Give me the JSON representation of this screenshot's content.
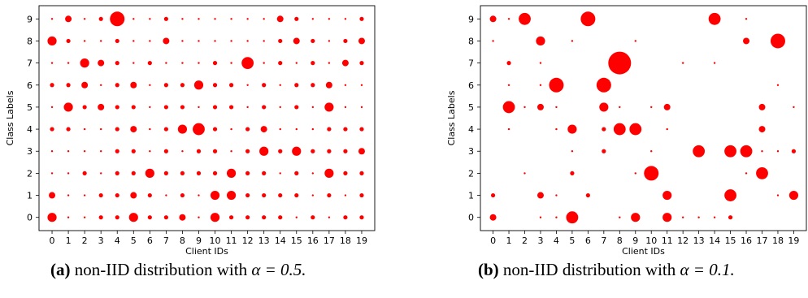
{
  "chart_data": [
    {
      "type": "scatter",
      "panel_tag": "(a)",
      "caption_text": "non-IID distribution with",
      "caption_math": "α = 0.5.",
      "xlabel": "Client IDs",
      "ylabel": "Class Labels",
      "x_ticks": [
        "0",
        "1",
        "2",
        "3",
        "4",
        "5",
        "6",
        "7",
        "8",
        "9",
        "10",
        "11",
        "12",
        "13",
        "14",
        "15",
        "16",
        "17",
        "18",
        "19"
      ],
      "y_ticks": [
        "0",
        "1",
        "2",
        "3",
        "4",
        "5",
        "6",
        "7",
        "8",
        "9"
      ],
      "xlim": [
        -0.8,
        19.8
      ],
      "ylim": [
        -0.6,
        9.6
      ],
      "marker_color": "#ff0000",
      "size_grid": [
        [
          4,
          1,
          1,
          2,
          2,
          4,
          2,
          2,
          3,
          1,
          4,
          2,
          2,
          2,
          2,
          1,
          2,
          1,
          2,
          2
        ],
        [
          3,
          1,
          1,
          2,
          2,
          3,
          2,
          1,
          2,
          1,
          4,
          4,
          2,
          2,
          2,
          2,
          1,
          2,
          1,
          2
        ],
        [
          1,
          1,
          2,
          1,
          2,
          2,
          4,
          2,
          2,
          2,
          2,
          4,
          2,
          2,
          1,
          2,
          1,
          4,
          2,
          2
        ],
        [
          1,
          1,
          1,
          1,
          2,
          2,
          1,
          2,
          1,
          2,
          2,
          1,
          2,
          4,
          2,
          4,
          2,
          2,
          2,
          3
        ],
        [
          2,
          2,
          1,
          1,
          2,
          3,
          1,
          2,
          4,
          5,
          2,
          1,
          2,
          3,
          1,
          1,
          1,
          2,
          2,
          2
        ],
        [
          1,
          4,
          2,
          3,
          2,
          2,
          1,
          2,
          2,
          1,
          2,
          2,
          1,
          2,
          1,
          2,
          1,
          4,
          1,
          1
        ],
        [
          2,
          2,
          3,
          1,
          2,
          3,
          1,
          2,
          2,
          4,
          2,
          2,
          1,
          2,
          1,
          2,
          2,
          3,
          1,
          1
        ],
        [
          1,
          1,
          4,
          3,
          2,
          1,
          2,
          1,
          1,
          1,
          2,
          1,
          5,
          1,
          2,
          1,
          2,
          1,
          3,
          2
        ],
        [
          4,
          2,
          1,
          1,
          2,
          1,
          1,
          3,
          1,
          1,
          1,
          1,
          1,
          1,
          2,
          3,
          2,
          1,
          2,
          3
        ],
        [
          1,
          3,
          1,
          2,
          6,
          1,
          1,
          2,
          1,
          1,
          1,
          1,
          1,
          1,
          3,
          2,
          1,
          1,
          1,
          2
        ]
      ]
    },
    {
      "type": "scatter",
      "panel_tag": "(b)",
      "caption_text": "non-IID distribution with",
      "caption_math": "α = 0.1.",
      "xlabel": "Client IDs",
      "ylabel": "Class Labels",
      "x_ticks": [
        "0",
        "1",
        "2",
        "3",
        "4",
        "5",
        "6",
        "7",
        "8",
        "9",
        "10",
        "11",
        "12",
        "13",
        "14",
        "15",
        "16",
        "17",
        "18",
        "19"
      ],
      "y_ticks": [
        "0",
        "1",
        "2",
        "3",
        "4",
        "5",
        "6",
        "7",
        "8",
        "9"
      ],
      "xlim": [
        -0.8,
        19.8
      ],
      "ylim": [
        -0.6,
        9.6
      ],
      "marker_color": "#ff0000",
      "size_grid": [
        [
          3,
          0,
          0,
          1,
          1,
          5,
          0,
          0,
          1,
          4,
          0,
          4,
          1,
          1,
          1,
          2,
          0,
          0,
          0,
          0
        ],
        [
          2,
          0,
          0,
          3,
          1,
          0,
          2,
          0,
          0,
          0,
          0,
          4,
          0,
          0,
          0,
          5,
          0,
          0,
          1,
          4
        ],
        [
          0,
          0,
          1,
          0,
          0,
          2,
          0,
          0,
          0,
          1,
          6,
          0,
          0,
          0,
          0,
          0,
          1,
          5,
          0,
          0
        ],
        [
          0,
          0,
          0,
          0,
          0,
          1,
          0,
          2,
          0,
          0,
          1,
          0,
          0,
          5,
          0,
          5,
          5,
          1,
          1,
          2
        ],
        [
          0,
          1,
          0,
          0,
          1,
          4,
          0,
          2,
          5,
          5,
          0,
          1,
          0,
          0,
          0,
          0,
          0,
          3,
          0,
          0
        ],
        [
          0,
          5,
          1,
          3,
          1,
          0,
          0,
          4,
          1,
          0,
          1,
          3,
          0,
          0,
          0,
          0,
          0,
          3,
          0,
          1
        ],
        [
          0,
          1,
          0,
          1,
          6,
          0,
          0,
          6,
          0,
          0,
          0,
          0,
          0,
          0,
          0,
          0,
          0,
          0,
          1,
          0
        ],
        [
          0,
          2,
          0,
          1,
          0,
          0,
          0,
          0,
          8,
          0,
          0,
          0,
          1,
          0,
          1,
          0,
          0,
          0,
          0,
          0
        ],
        [
          1,
          0,
          0,
          4,
          0,
          1,
          0,
          0,
          0,
          1,
          0,
          0,
          0,
          0,
          0,
          0,
          3,
          0,
          6,
          0
        ],
        [
          3,
          1,
          5,
          0,
          0,
          0,
          6,
          0,
          0,
          0,
          0,
          0,
          0,
          0,
          5,
          0,
          1,
          0,
          0,
          0
        ]
      ]
    }
  ]
}
